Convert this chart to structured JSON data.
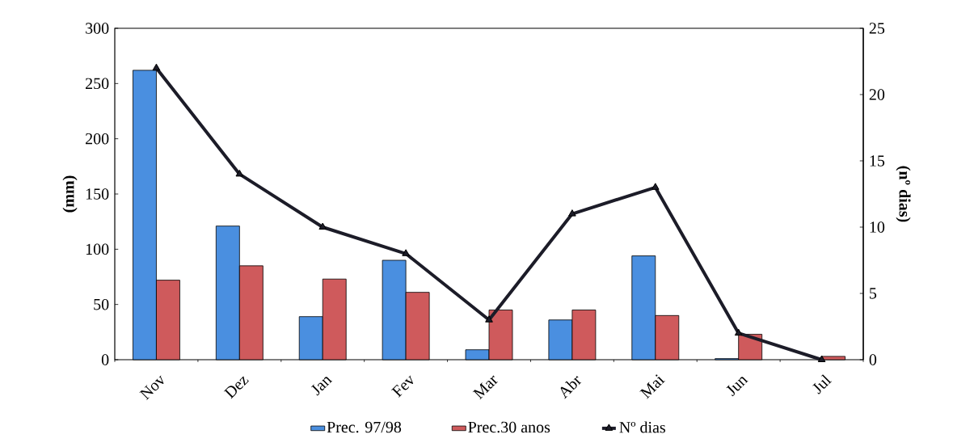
{
  "chart_data": {
    "type": "bar",
    "categories": [
      "Nov",
      "Dez",
      "Jan",
      "Fev",
      "Mar",
      "Abr",
      "Mai",
      "Jun",
      "Jul"
    ],
    "series": [
      {
        "name": "Prec. 97/98",
        "color": "#4a8fe0",
        "values": [
          262,
          121,
          39,
          90,
          9,
          36,
          94,
          1,
          null
        ]
      },
      {
        "name": "Prec.30 anos",
        "color": "#cf5a5c",
        "values": [
          72,
          85,
          73,
          61,
          45,
          45,
          40,
          23,
          3
        ]
      },
      {
        "name": "Nº dias",
        "type": "line",
        "axis": "y2",
        "color": "#1c1c28",
        "values": [
          22,
          14,
          10,
          8,
          3,
          11,
          13,
          2,
          0
        ]
      }
    ],
    "ylabel": "(mm)",
    "y2label": "(nº dias)",
    "ylim": [
      0,
      300
    ],
    "yticks": [
      0,
      50,
      100,
      150,
      200,
      250,
      300
    ],
    "y2lim": [
      0,
      25
    ],
    "y2ticks": [
      0,
      5,
      10,
      15,
      20,
      25
    ],
    "legend": "bottom",
    "marker": "triangle",
    "line_style": "solid"
  }
}
